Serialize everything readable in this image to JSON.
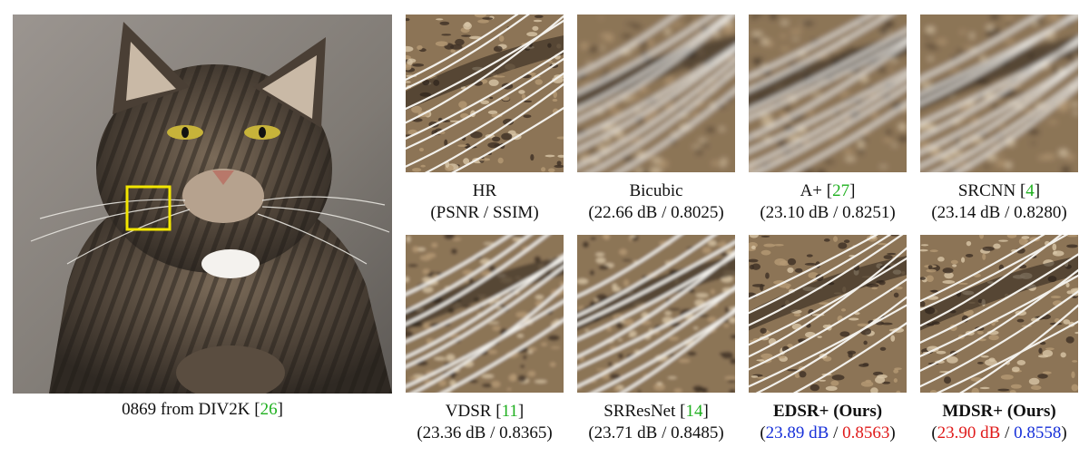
{
  "main": {
    "caption_prefix": "0869 from DIV2K [",
    "caption_ref": "26",
    "caption_suffix": "]",
    "image_icon": "cat-photo"
  },
  "panels": [
    {
      "label": "HR",
      "ref": "",
      "metric_text": "(PSNR / SSIM)",
      "psnr": "",
      "ssim": "",
      "bold": false,
      "texture": "sharp"
    },
    {
      "label": "Bicubic",
      "ref": "",
      "metric_text": "",
      "psnr": "22.66 dB",
      "ssim": "0.8025",
      "bold": false,
      "texture": "blurry"
    },
    {
      "label": "A+ [",
      "ref": "27",
      "metric_text": "",
      "psnr": "23.10 dB",
      "ssim": "0.8251",
      "bold": false,
      "texture": "blurry"
    },
    {
      "label": "SRCNN [",
      "ref": "4",
      "metric_text": "",
      "psnr": "23.14 dB",
      "ssim": "0.8280",
      "bold": false,
      "texture": "blurry"
    },
    {
      "label": "VDSR [",
      "ref": "11",
      "metric_text": "",
      "psnr": "23.36 dB",
      "ssim": "0.8365",
      "bold": false,
      "texture": "soft"
    },
    {
      "label": "SRResNet [",
      "ref": "14",
      "metric_text": "",
      "psnr": "23.71 dB",
      "ssim": "0.8485",
      "bold": false,
      "texture": "soft"
    },
    {
      "label": "EDSR+ (Ours)",
      "ref": "",
      "metric_text": "",
      "psnr": "23.89 dB",
      "ssim": "0.8563",
      "bold": true,
      "psnr_color": "#1730d9",
      "ssim_color": "#e01b1b",
      "texture": "sharp"
    },
    {
      "label": "MDSR+ (Ours)",
      "ref": "",
      "metric_text": "",
      "psnr": "23.90 dB",
      "ssim": "0.8558",
      "bold": true,
      "psnr_color": "#e01b1b",
      "ssim_color": "#1730d9",
      "texture": "sharp"
    }
  ],
  "colors": {
    "reference_green": "#1fb01f",
    "best_red": "#e01b1b",
    "second_blue": "#1730d9",
    "highlight_box": "#f2e600"
  }
}
